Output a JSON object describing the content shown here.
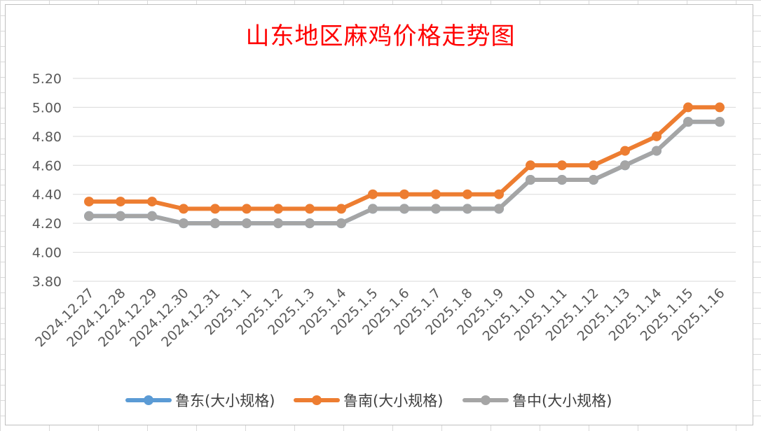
{
  "chart_data": {
    "type": "line",
    "title": "山东地区麻鸡价格走势图",
    "xlabel": "",
    "ylabel": "",
    "categories": [
      "2024.12.27",
      "2024.12.28",
      "2024.12.29",
      "2024.12.30",
      "2024.12.31",
      "2025.1.1",
      "2025.1.2",
      "2025.1.3",
      "2025.1.4",
      "2025.1.5",
      "2025.1.6",
      "2025.1.7",
      "2025.1.8",
      "2025.1.9",
      "2025.1.10",
      "2025.1.11",
      "2025.1.12",
      "2025.1.13",
      "2025.1.14",
      "2025.1.15",
      "2025.1.16"
    ],
    "y_ticks": [
      "3.80",
      "4.00",
      "4.20",
      "4.40",
      "4.60",
      "4.80",
      "5.00",
      "5.20"
    ],
    "ylim": [
      3.8,
      5.2
    ],
    "grid": true,
    "legend_position": "bottom",
    "series": [
      {
        "name": "鲁东(大小规格)",
        "color": "#5b9bd5",
        "values": [
          4.25,
          4.25,
          4.25,
          4.2,
          4.2,
          4.2,
          4.2,
          4.2,
          4.2,
          4.3,
          4.3,
          4.3,
          4.3,
          4.3,
          4.5,
          4.5,
          4.5,
          4.6,
          4.7,
          4.9,
          4.9
        ]
      },
      {
        "name": "鲁南(大小规格)",
        "color": "#ed7d31",
        "values": [
          4.35,
          4.35,
          4.35,
          4.3,
          4.3,
          4.3,
          4.3,
          4.3,
          4.3,
          4.4,
          4.4,
          4.4,
          4.4,
          4.4,
          4.6,
          4.6,
          4.6,
          4.7,
          4.8,
          5.0,
          5.0
        ]
      },
      {
        "name": "鲁中(大小规格)",
        "color": "#a5a5a5",
        "values": [
          4.25,
          4.25,
          4.25,
          4.2,
          4.2,
          4.2,
          4.2,
          4.2,
          4.2,
          4.3,
          4.3,
          4.3,
          4.3,
          4.3,
          4.5,
          4.5,
          4.5,
          4.6,
          4.7,
          4.9,
          4.9
        ]
      }
    ]
  }
}
